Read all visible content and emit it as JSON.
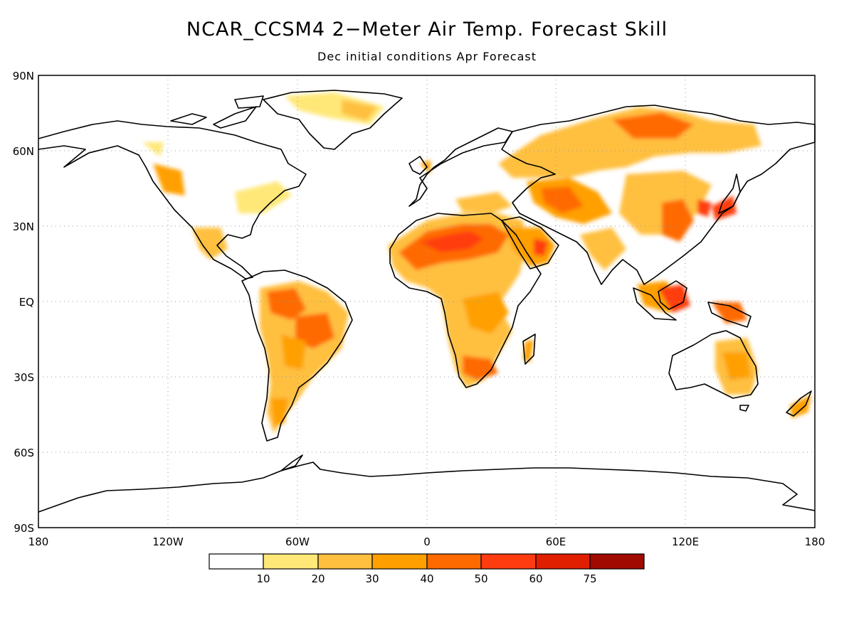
{
  "header": {
    "title": "NCAR_CCSM4 2−Meter Air Temp. Forecast Skill",
    "subtitle": "Dec initial conditions  Apr Forecast"
  },
  "axes": {
    "lat_labels": [
      "90N",
      "60N",
      "30N",
      "EQ",
      "30S",
      "60S",
      "90S"
    ],
    "lon_labels": [
      "180",
      "120W",
      "60W",
      "0",
      "60E",
      "120E",
      "180"
    ]
  },
  "legend": {
    "labels": [
      "10",
      "20",
      "30",
      "40",
      "50",
      "60",
      "75"
    ],
    "colors": [
      "#ffffff",
      "#ffe878",
      "#ffc040",
      "#ffa000",
      "#ff6a00",
      "#ff3c10",
      "#e01e00",
      "#a00a00"
    ]
  },
  "colors": {
    "coast": "#000000",
    "grid": "#999999"
  }
}
